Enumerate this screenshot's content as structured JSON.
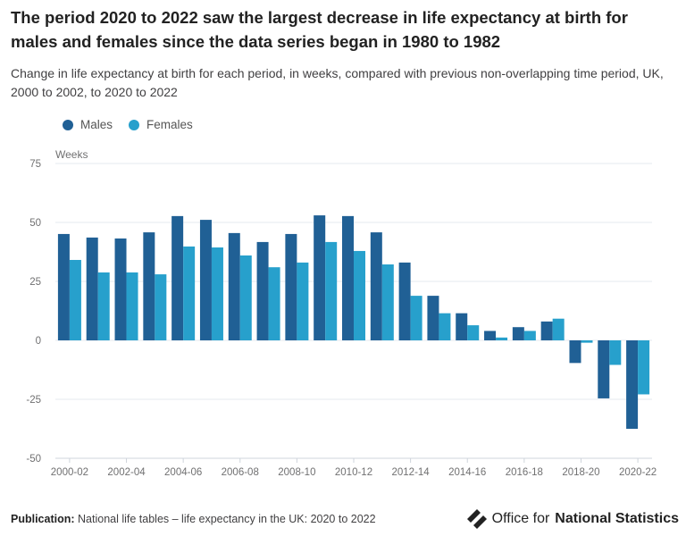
{
  "title": "The period 2020 to 2022 saw the largest decrease in life expectancy at birth for males and females since the data series began in 1980 to 1982",
  "subtitle": "Change in life expectancy at birth for each period, in weeks, compared with previous non-overlapping time period, UK, 2000 to 2002, to 2020 to 2022",
  "footer": {
    "publication_label": "Publication:",
    "publication_text": "National life tables – life expectancy in the UK: 2020 to 2022"
  },
  "logo": {
    "text_regular": "Office for",
    "text_bold": "National Statistics"
  },
  "chart_data": {
    "type": "bar",
    "ylabel": "Weeks",
    "ylim": [
      -50,
      75
    ],
    "yticks": [
      75,
      50,
      25,
      0,
      -25,
      -50
    ],
    "grid": true,
    "legend_position": "top-left",
    "categories": [
      "2000-02",
      "2001-03",
      "2002-04",
      "2003-05",
      "2004-06",
      "2005-07",
      "2006-08",
      "2007-09",
      "2008-10",
      "2009-11",
      "2010-12",
      "2011-13",
      "2012-14",
      "2013-15",
      "2014-16",
      "2015-17",
      "2016-18",
      "2017-19",
      "2018-20",
      "2019-21",
      "2020-22"
    ],
    "tick_labels": [
      "2000-02",
      "2002-04",
      "2004-06",
      "2006-08",
      "2008-10",
      "2010-12",
      "2012-14",
      "2014-16",
      "2016-18",
      "2018-20",
      "2020-22"
    ],
    "series": [
      {
        "name": "Males",
        "color": "#206095",
        "values": [
          45.1,
          43.6,
          43.2,
          45.8,
          52.7,
          51.1,
          45.5,
          41.7,
          45.1,
          53.0,
          52.7,
          45.8,
          33.0,
          18.9,
          11.5,
          4.0,
          5.6,
          8.0,
          -9.6,
          -24.6,
          -37.5
        ]
      },
      {
        "name": "Females",
        "color": "#27a0cc",
        "values": [
          34.1,
          28.8,
          28.8,
          28.0,
          39.8,
          39.4,
          36.0,
          31.0,
          33.0,
          41.7,
          37.9,
          32.2,
          18.9,
          11.5,
          6.4,
          1.2,
          4.0,
          9.2,
          -1.0,
          -10.4,
          -22.9
        ]
      }
    ]
  }
}
